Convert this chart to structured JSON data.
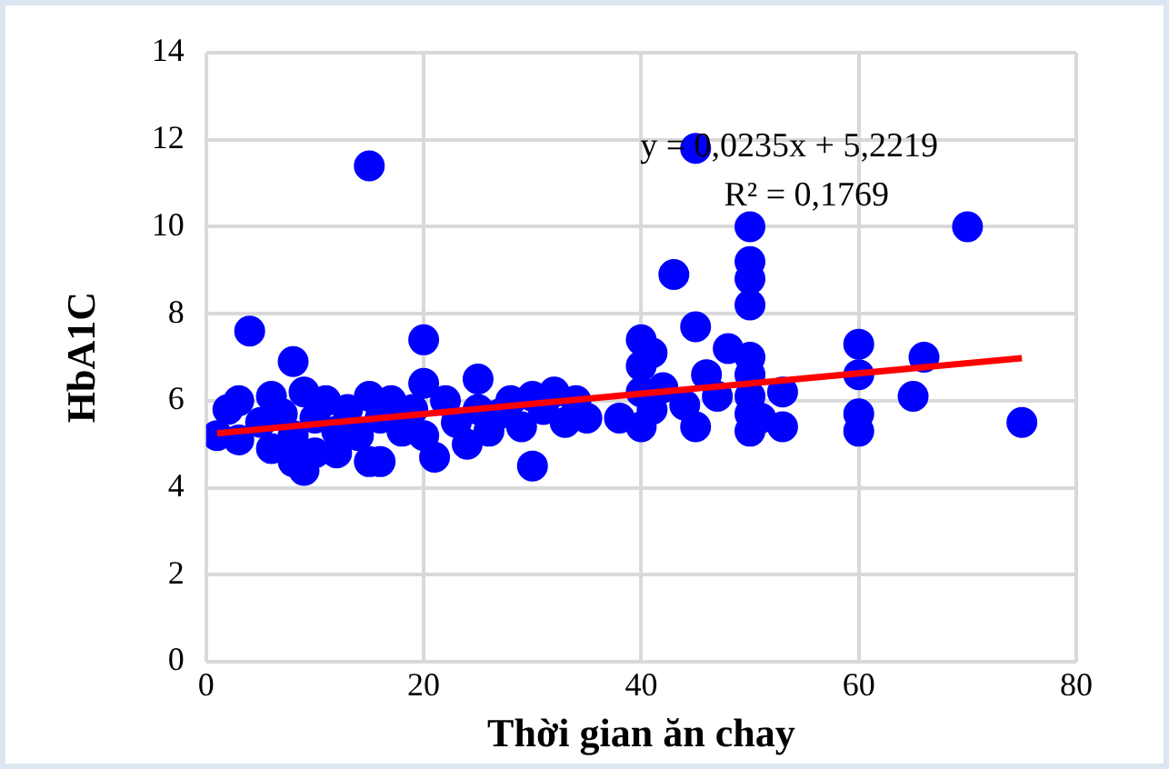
{
  "chart_data": {
    "type": "scatter",
    "xlabel": "Thời gian ăn chay",
    "ylabel": "HbA1C",
    "xlim": [
      0,
      80
    ],
    "xticks": [
      0,
      20,
      40,
      60,
      80
    ],
    "ylim": [
      0,
      14
    ],
    "yticks": [
      0,
      2,
      4,
      6,
      8,
      10,
      12,
      14
    ],
    "grid": true,
    "legend": false,
    "marker": "circle",
    "annotations": [
      "y = 0,0235x + 5,2219",
      "R² = 0,1769"
    ],
    "series": [
      {
        "type": "scatter",
        "color": "#0000ff",
        "x": [
          1,
          2,
          3,
          3,
          4,
          5,
          6,
          6,
          7,
          8,
          8,
          8,
          9,
          9,
          10,
          10,
          11,
          12,
          12,
          13,
          14,
          15,
          15,
          15,
          16,
          16,
          17,
          18,
          19,
          20,
          20,
          20,
          21,
          22,
          23,
          24,
          25,
          25,
          26,
          27,
          28,
          29,
          30,
          30,
          31,
          32,
          33,
          34,
          35,
          38,
          40,
          40,
          40,
          40,
          41,
          41,
          42,
          43,
          44,
          45,
          45,
          45,
          46,
          47,
          48,
          50,
          50,
          50,
          50,
          50,
          50,
          50,
          50,
          50,
          51,
          53,
          53,
          60,
          60,
          60,
          60,
          65,
          66,
          70,
          75
        ],
        "values": [
          5.2,
          5.8,
          6.0,
          5.1,
          7.6,
          5.5,
          6.1,
          4.9,
          5.7,
          6.9,
          5.2,
          4.6,
          6.2,
          4.4,
          5.6,
          4.8,
          6.0,
          5.3,
          4.8,
          5.8,
          5.2,
          11.4,
          6.1,
          4.6,
          5.6,
          4.6,
          6.0,
          5.3,
          5.8,
          7.4,
          6.4,
          5.2,
          4.7,
          6.0,
          5.5,
          5.0,
          6.5,
          5.8,
          5.3,
          5.7,
          6.0,
          5.4,
          6.1,
          4.5,
          5.8,
          6.2,
          5.5,
          6.0,
          5.6,
          5.6,
          7.4,
          6.8,
          6.2,
          5.4,
          7.1,
          5.8,
          6.3,
          8.9,
          5.9,
          11.8,
          7.7,
          5.4,
          6.6,
          6.1,
          7.2,
          10.0,
          9.2,
          8.8,
          8.2,
          7.0,
          6.6,
          6.1,
          5.7,
          5.3,
          5.6,
          6.2,
          5.4,
          7.3,
          6.6,
          5.7,
          5.3,
          6.1,
          7.0,
          10.0,
          5.5
        ]
      },
      {
        "type": "line",
        "color": "#ff0000",
        "x": [
          1,
          75
        ],
        "values": [
          5.25,
          6.98
        ],
        "marker": "none"
      }
    ]
  }
}
